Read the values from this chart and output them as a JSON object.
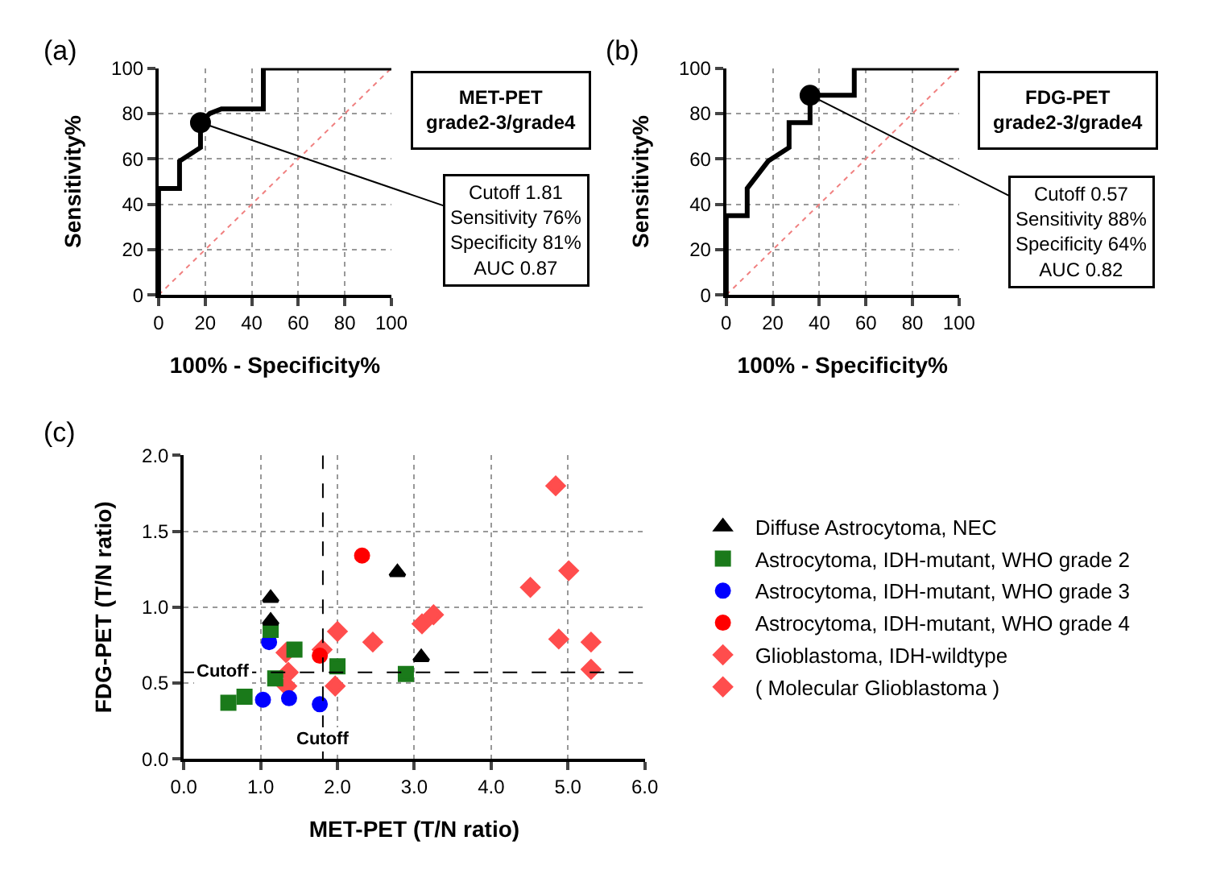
{
  "chart_data": [
    {
      "type": "line",
      "xlabel": "100% - Specificity%",
      "ylabel": "Sensitivity%",
      "xlim": [
        0,
        100
      ],
      "ylim": [
        0,
        100
      ],
      "xticks": [
        0,
        20,
        40,
        60,
        80,
        100
      ],
      "yticks": [
        0,
        20,
        40,
        60,
        80,
        100
      ],
      "grid": true,
      "legend": false,
      "annotations": [
        "(a)",
        "MET-PET\ngrade2-3/grade4",
        {
          "text": "Cutoff 1.81\nSensitivity 76%\nSpecificity 81%\nAUC 0.87",
          "x": 18,
          "y": 76
        }
      ],
      "series": [
        {
          "type": "line",
          "color": "#000000",
          "marker": "none",
          "line_style": "solid",
          "x": [
            0,
            0,
            9,
            9,
            18,
            18,
            22,
            27,
            45,
            45,
            100
          ],
          "values": [
            0,
            47,
            47,
            59,
            65,
            76,
            80,
            82,
            82,
            100,
            100
          ]
        },
        {
          "type": "line",
          "color": "#f08080",
          "marker": "none",
          "line_style": "dotted",
          "x": [
            0,
            100
          ],
          "values": [
            0,
            100
          ]
        },
        {
          "type": "scatter",
          "color": "#000000",
          "marker": "circle",
          "x": [
            18
          ],
          "values": [
            76
          ]
        }
      ]
    },
    {
      "type": "line",
      "xlabel": "100% - Specificity%",
      "ylabel": "Sensitivity%",
      "xlim": [
        0,
        100
      ],
      "ylim": [
        0,
        100
      ],
      "xticks": [
        0,
        20,
        40,
        60,
        80,
        100
      ],
      "yticks": [
        0,
        20,
        40,
        60,
        80,
        100
      ],
      "grid": true,
      "legend": false,
      "annotations": [
        "(b)",
        "FDG-PET\ngrade2-3/grade4",
        {
          "text": "Cutoff 0.57\nSensitivity 88%\nSpecificity 64%\nAUC 0.82",
          "x": 36,
          "y": 88
        }
      ],
      "series": [
        {
          "type": "line",
          "color": "#000000",
          "marker": "none",
          "line_style": "solid",
          "x": [
            0,
            0,
            9,
            9,
            18,
            27,
            27,
            36,
            36,
            55,
            55,
            100
          ],
          "values": [
            0,
            35,
            35,
            47,
            59,
            65,
            76,
            76,
            88,
            88,
            100,
            100
          ]
        },
        {
          "type": "line",
          "color": "#f08080",
          "marker": "none",
          "line_style": "dotted",
          "x": [
            0,
            100
          ],
          "values": [
            0,
            100
          ]
        },
        {
          "type": "scatter",
          "color": "#000000",
          "marker": "circle",
          "x": [
            36
          ],
          "values": [
            88
          ]
        }
      ]
    },
    {
      "type": "scatter",
      "xlabel": "MET-PET (T/N ratio)",
      "ylabel": "FDG-PET (T/N ratio)",
      "xlim": [
        0,
        6
      ],
      "ylim": [
        0,
        2
      ],
      "xticks": [
        {
          "value": 0,
          "label": "0.0"
        },
        {
          "value": 1,
          "label": "1.0"
        },
        {
          "value": 2,
          "label": "2.0"
        },
        {
          "value": 3,
          "label": "3.0"
        },
        {
          "value": 4,
          "label": "4.0"
        },
        {
          "value": 5,
          "label": "5.0"
        },
        {
          "value": 6,
          "label": "6.0"
        }
      ],
      "yticks": [
        {
          "value": 0,
          "label": "0.0"
        },
        {
          "value": 0.5,
          "label": "0.5"
        },
        {
          "value": 1,
          "label": "1.0"
        },
        {
          "value": 1.5,
          "label": "1.5"
        },
        {
          "value": 2,
          "label": "2.0"
        }
      ],
      "grid": true,
      "legend": "right",
      "annotations": [
        "(c)"
      ],
      "ref_lines": [
        {
          "axis": "x",
          "value": 1.81,
          "label": "Cutoff",
          "color": "#000000",
          "line_style": "dashed"
        },
        {
          "axis": "y",
          "value": 0.57,
          "label": "Cutoff",
          "color": "#000000",
          "line_style": "dashed"
        }
      ],
      "series": [
        {
          "name": "Diffuse Astrocytoma, NEC",
          "color": "#000000",
          "marker": "triangle",
          "x": [
            1.13,
            1.13,
            2.78,
            3.09
          ],
          "values": [
            1.06,
            0.91,
            1.23,
            0.67
          ]
        },
        {
          "name": "Astrocytoma, IDH-mutant, WHO grade 2",
          "color": "#1a7a1a",
          "marker": "square",
          "x": [
            0.58,
            0.79,
            1.13,
            1.19,
            1.44,
            2.0,
            2.89
          ],
          "values": [
            0.37,
            0.41,
            0.85,
            0.53,
            0.72,
            0.61,
            0.56
          ]
        },
        {
          "name": "Astrocytoma, IDH-mutant, WHO grade 3",
          "color": "#0000ff",
          "marker": "circle",
          "x": [
            1.11,
            1.03,
            1.37,
            1.77
          ],
          "values": [
            0.77,
            0.39,
            0.4,
            0.36
          ]
        },
        {
          "name": "Astrocytoma, IDH-mutant, WHO grade 4",
          "color": "#ff0000",
          "marker": "circle",
          "x": [
            2.32,
            1.77
          ],
          "values": [
            1.34,
            0.68
          ]
        },
        {
          "name": "Glioblastoma, IDH-wildtype",
          "color": "#ff4d4d",
          "marker": "diamond",
          "x": [
            1.33,
            2.0,
            2.46,
            3.1,
            3.25,
            4.51,
            4.84,
            4.88,
            5.3
          ],
          "values": [
            0.7,
            0.84,
            0.77,
            0.89,
            0.95,
            1.13,
            1.8,
            0.79,
            0.77
          ]
        },
        {
          "name": "( Molecular Glioblastoma )",
          "color": "#ff4d4d",
          "marker": "diamond",
          "x": [
            1.36,
            1.34,
            1.8,
            1.97,
            5.01,
            5.3
          ],
          "values": [
            0.57,
            0.48,
            0.72,
            0.48,
            1.24,
            0.59
          ]
        }
      ]
    }
  ]
}
